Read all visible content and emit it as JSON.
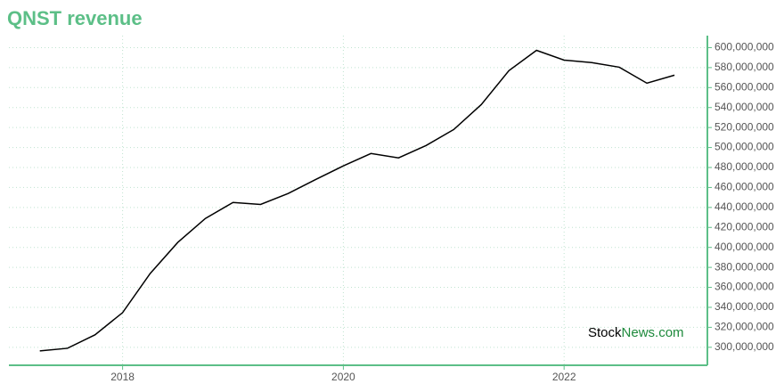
{
  "chart_data": {
    "type": "line",
    "title": "QNST revenue",
    "x": [
      2017.25,
      2017.5,
      2017.75,
      2018.0,
      2018.25,
      2018.5,
      2018.75,
      2019.0,
      2019.25,
      2019.5,
      2019.75,
      2020.0,
      2020.25,
      2020.5,
      2020.75,
      2021.0,
      2021.25,
      2021.5,
      2021.75,
      2022.0,
      2022.25,
      2022.5,
      2022.75,
      2023.0
    ],
    "series": [
      {
        "name": "QNST revenue",
        "color": "#000000",
        "values": [
          296400000,
          299000000,
          312500000,
          334700000,
          373900000,
          405000000,
          429000000,
          445000000,
          443000000,
          454000000,
          468000000,
          481600000,
          494000000,
          489600000,
          502000000,
          518000000,
          543000000,
          577000000,
          597300000,
          587500000,
          585000000,
          580400000,
          564400000,
          572400000
        ]
      }
    ],
    "xlim": [
      2016.97,
      2023.29
    ],
    "xticks": [
      2018,
      2020,
      2022
    ],
    "ylim": [
      282000000,
      612000000
    ],
    "yticks": [
      {
        "value": 300000000,
        "label": "300,000,000"
      },
      {
        "value": 320000000,
        "label": "320,000,000"
      },
      {
        "value": 340000000,
        "label": "340,000,000"
      },
      {
        "value": 360000000,
        "label": "360,000,000"
      },
      {
        "value": 380000000,
        "label": "380,000,000"
      },
      {
        "value": 400000000,
        "label": "400,000,000"
      },
      {
        "value": 420000000,
        "label": "420,000,000"
      },
      {
        "value": 440000000,
        "label": "440,000,000"
      },
      {
        "value": 460000000,
        "label": "460,000,000"
      },
      {
        "value": 480000000,
        "label": "480,000,000"
      },
      {
        "value": 500000000,
        "label": "500,000,000"
      },
      {
        "value": 520000000,
        "label": "520,000,000"
      },
      {
        "value": 540000000,
        "label": "540,000,000"
      },
      {
        "value": 560000000,
        "label": "560,000,000"
      },
      {
        "value": 580000000,
        "label": "580,000,000"
      },
      {
        "value": 600000000,
        "label": "600,000,000"
      }
    ],
    "grid": true,
    "watermark": {
      "part1": "Stock",
      "part2": "News.com"
    }
  }
}
